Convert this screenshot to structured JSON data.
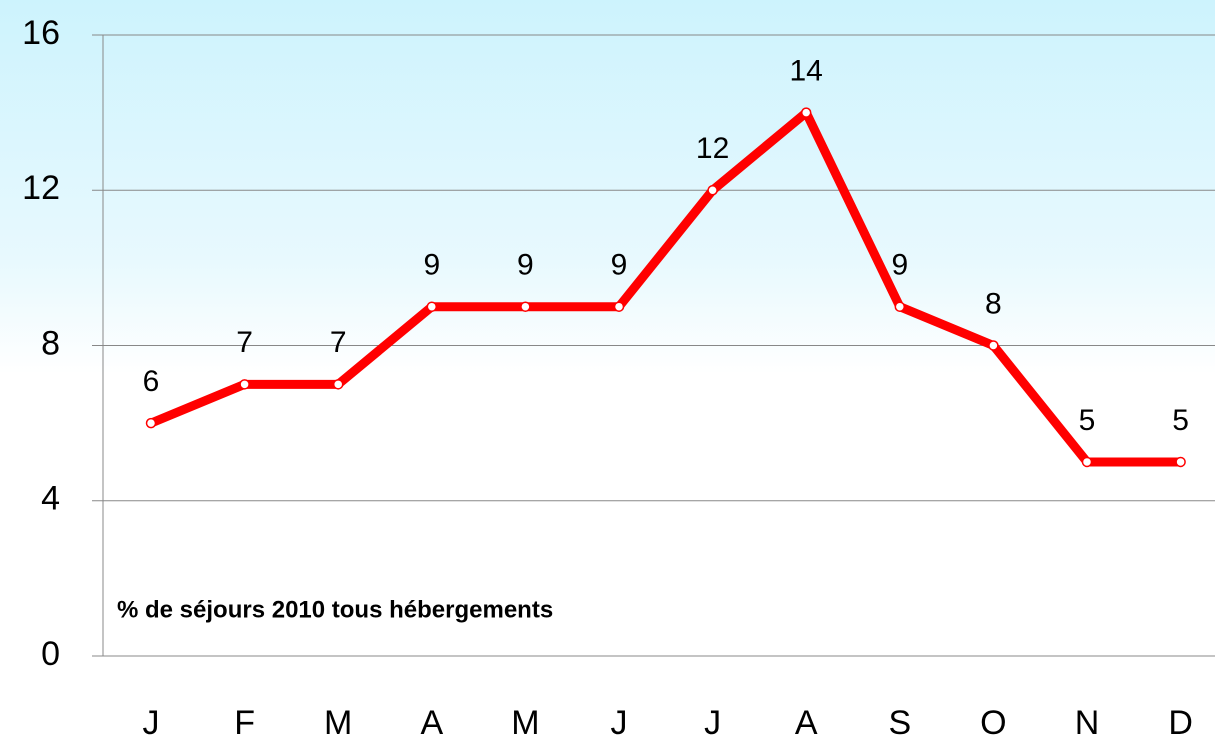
{
  "chart_data": {
    "type": "line",
    "annotation": "% de séjours 2010 tous hébergements",
    "categories": [
      "J",
      "F",
      "M",
      "A",
      "M",
      "J",
      "J",
      "A",
      "S",
      "O",
      "N",
      "D"
    ],
    "series": [
      {
        "name": "% de séjours 2010",
        "color": "#ff0000",
        "values": [
          6,
          7,
          7,
          9,
          9,
          9,
          12,
          14,
          9,
          8,
          5,
          5
        ]
      }
    ],
    "ylim": [
      0,
      16
    ],
    "yticks": [
      0,
      4,
      8,
      12,
      16
    ],
    "grid": true
  }
}
